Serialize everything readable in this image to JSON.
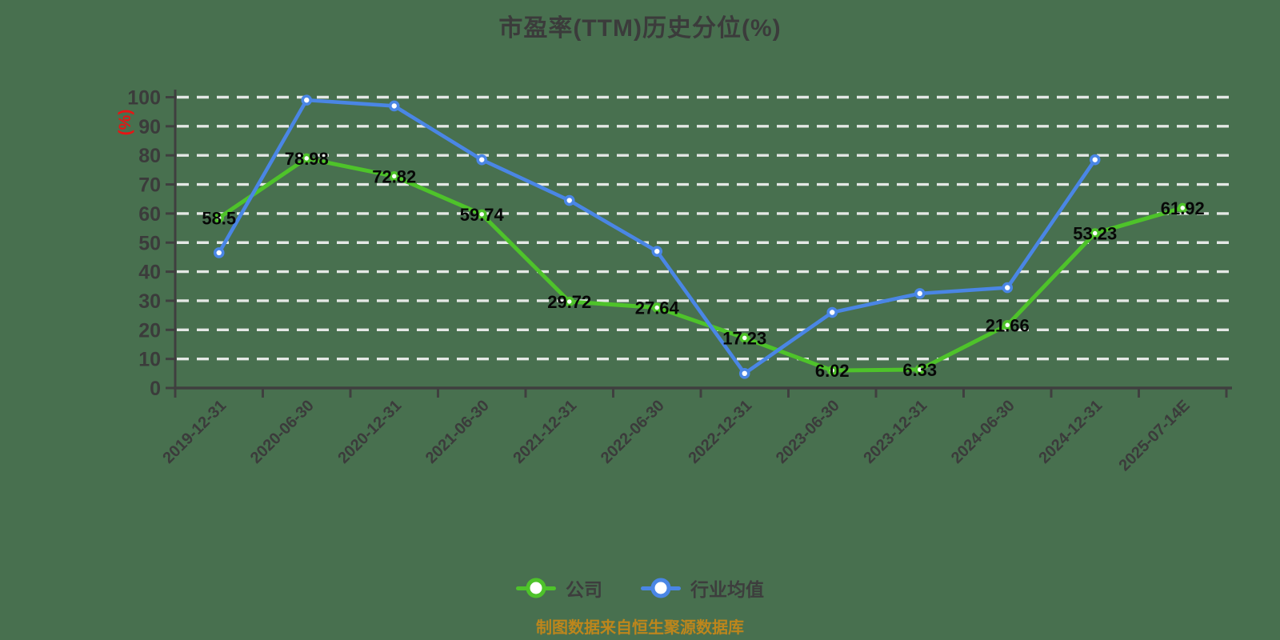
{
  "title": "市盈率(TTM)历史分位(%)",
  "y_axis_unit": "(%)",
  "footer": "制图数据来自恒生聚源数据库",
  "colors": {
    "background": "#48704f",
    "company_green": "#4ec32a",
    "industry_blue": "#4a86e5",
    "gridline_white": "#f2f2f2",
    "axis_dark": "#3f3f3f",
    "tick_label": "#3b3b3b",
    "point_label": "#070707",
    "title_text": "#3b3b3b",
    "y_unit_red": "#e81414",
    "footer_orange": "#bd861c",
    "marker_fill": "#ffffff"
  },
  "chart_data": {
    "type": "line",
    "title": "市盈率(TTM)历史分位(%)",
    "xlabel": "",
    "ylabel": "(%)",
    "ylim": [
      0,
      100
    ],
    "y_ticks": [
      0,
      10,
      20,
      30,
      40,
      50,
      60,
      70,
      80,
      90,
      100
    ],
    "grid": "horizontal-dashed-white",
    "legend_position": "bottom",
    "x_label_rotation": -45,
    "categories": [
      "2019-12-31",
      "2020-06-30",
      "2020-12-31",
      "2021-06-30",
      "2021-12-31",
      "2022-06-30",
      "2022-12-31",
      "2023-06-30",
      "2023-12-31",
      "2024-06-30",
      "2024-12-31",
      "2025-07-14E"
    ],
    "series": [
      {
        "name": "公司",
        "color": "#4ec32a",
        "show_point_labels": true,
        "values": [
          58.5,
          78.98,
          72.82,
          59.74,
          29.72,
          27.64,
          17.23,
          6.02,
          6.33,
          21.66,
          53.23,
          61.92
        ],
        "point_labels": [
          "58.5",
          "78.98",
          "72.82",
          "59.74",
          "29.72",
          "27.64",
          "17.23",
          "6.02",
          "6.33",
          "21.66",
          "53.23",
          "61.92"
        ]
      },
      {
        "name": "行业均值",
        "color": "#4a86e5",
        "show_point_labels": false,
        "values": [
          46.5,
          99,
          97,
          78.5,
          64.5,
          47,
          5,
          26,
          32.5,
          34.5,
          78.5,
          null
        ],
        "point_labels": []
      }
    ]
  }
}
